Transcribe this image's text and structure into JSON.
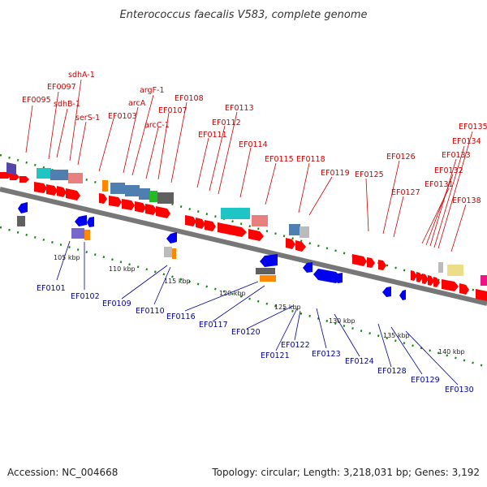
{
  "title": "Enterococcus faecalis V583, complete genome",
  "footer": {
    "accession": "Accession: NC_004668",
    "topology": "Topology: circular; Length: 3,218,031 bp; Genes: 3,192"
  },
  "colors": {
    "forward_label": "#cc0000",
    "reverse_label": "#000099",
    "forward_gene": "#ff0000",
    "reverse_gene": "#0000ee",
    "tick_green": "#118811"
  },
  "ticks": [
    "105 kbp",
    "110 kbp",
    "115 kbp",
    "120 kbp",
    "125 kbp",
    "130 kbp",
    "135 kbp",
    "140 kbp"
  ],
  "forward_labels": [
    "EF0095",
    "EF0097",
    "sdhA-1",
    "sdhB-1",
    "serS-1",
    "EF0103",
    "arcA",
    "argF-1",
    "arcC-1",
    "EF0107",
    "EF0108",
    "EF0111",
    "EF0112",
    "EF0113",
    "EF0114",
    "EF0115",
    "EF0118",
    "EF0119",
    "EF0125",
    "EF0126",
    "EF0127",
    "EF0131",
    "EF0132",
    "EF0133",
    "EF0134",
    "EF0135",
    "EF0138"
  ],
  "reverse_labels": [
    "EF0101",
    "EF0102",
    "EF0109",
    "EF0110",
    "EF0116",
    "EF0117",
    "EF0120",
    "EF0121",
    "EF0122",
    "EF0123",
    "EF0124",
    "EF0128",
    "EF0129",
    "EF0130"
  ]
}
